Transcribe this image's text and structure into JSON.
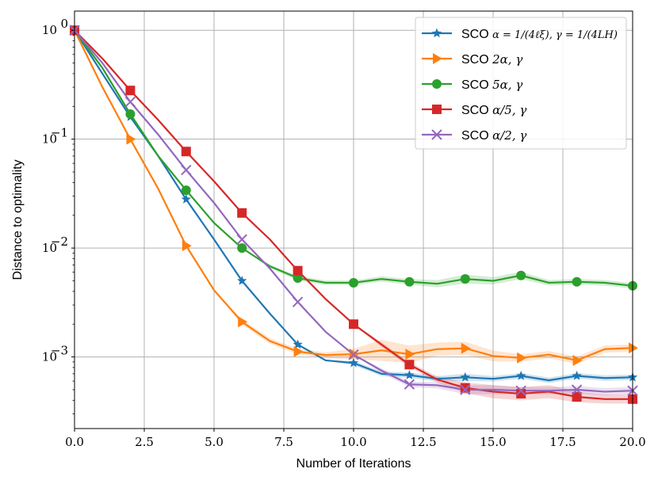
{
  "chart_data": {
    "type": "line",
    "title": "",
    "xlabel": "Number of Iterations",
    "ylabel": "Distance to optimality",
    "yscale": "log",
    "xlim": [
      0,
      20
    ],
    "ylim": [
      0.00022,
      1.5
    ],
    "grid": true,
    "legend_position": "top-right",
    "xticks": [
      0,
      2.5,
      5,
      7.5,
      10,
      12.5,
      15,
      17.5,
      20
    ],
    "xtick_labels": [
      "0.0",
      "2.5",
      "5.0",
      "7.5",
      "10.0",
      "12.5",
      "15.0",
      "17.5",
      "20.0"
    ],
    "yticks": [
      1,
      0.1,
      0.01,
      0.001
    ],
    "ytick_bases": [
      "10",
      "10",
      "10",
      "10"
    ],
    "ytick_exponents": [
      "0",
      "−1",
      "−2",
      "−3"
    ],
    "series": [
      {
        "name": "SCO α = 1/4ℓξ, γ = 1/4LH",
        "legend_prefix": "SCO",
        "legend_math": "α = 1/(4ℓξ), γ = 1/(4LH)",
        "color": "#1f77b4",
        "marker": "star",
        "x": [
          0,
          1,
          2,
          3,
          4,
          5,
          6,
          7,
          8,
          9,
          10,
          11,
          12,
          13,
          14,
          15,
          16,
          17,
          18,
          19,
          20
        ],
        "values": [
          1.0,
          0.4,
          0.16,
          0.07,
          0.028,
          0.012,
          0.005,
          0.0025,
          0.0013,
          0.00093,
          0.00088,
          0.0007,
          0.00068,
          0.00063,
          0.00065,
          0.00063,
          0.00067,
          0.00061,
          0.00067,
          0.00064,
          0.00065
        ],
        "band": [
          0.0,
          0.0,
          0.0,
          0.0,
          0.0,
          0.0,
          0.0,
          0.0,
          0.0,
          0.0,
          0.05,
          0.05,
          0.06,
          0.06,
          0.08,
          0.06,
          0.06,
          0.06,
          0.06,
          0.06,
          0.06
        ]
      },
      {
        "name": "SCO 2α, γ",
        "legend_prefix": "SCO",
        "legend_math": "2α, γ",
        "color": "#ff7f0e",
        "marker": "triangle-right",
        "x": [
          0,
          1,
          2,
          3,
          4,
          5,
          6,
          7,
          8,
          9,
          10,
          11,
          12,
          13,
          14,
          15,
          16,
          17,
          18,
          19,
          20
        ],
        "values": [
          1.0,
          0.3,
          0.1,
          0.035,
          0.0105,
          0.0041,
          0.0021,
          0.0014,
          0.00112,
          0.00104,
          0.00106,
          0.00115,
          0.00106,
          0.00118,
          0.0012,
          0.00102,
          0.00098,
          0.00105,
          0.00093,
          0.00118,
          0.00121
        ],
        "band": [
          0.0,
          0.0,
          0.0,
          0.0,
          0.0,
          0.0,
          0.06,
          0.06,
          0.06,
          0.06,
          0.12,
          0.25,
          0.2,
          0.15,
          0.15,
          0.12,
          0.08,
          0.08,
          0.08,
          0.08,
          0.08
        ]
      },
      {
        "name": "SCO 5α, γ",
        "legend_prefix": "SCO",
        "legend_math": "5α, γ",
        "color": "#2ca02c",
        "marker": "circle",
        "x": [
          0,
          1,
          2,
          3,
          4,
          5,
          6,
          7,
          8,
          9,
          10,
          11,
          12,
          13,
          14,
          15,
          16,
          17,
          18,
          19,
          20
        ],
        "values": [
          1.0,
          0.45,
          0.17,
          0.07,
          0.034,
          0.017,
          0.01,
          0.0068,
          0.0053,
          0.0048,
          0.0048,
          0.0052,
          0.0049,
          0.0047,
          0.0052,
          0.005,
          0.0056,
          0.0048,
          0.0049,
          0.0048,
          0.0045
        ],
        "band": [
          0.0,
          0.0,
          0.0,
          0.0,
          0.0,
          0.0,
          0.0,
          0.04,
          0.05,
          0.05,
          0.05,
          0.06,
          0.06,
          0.08,
          0.1,
          0.08,
          0.08,
          0.06,
          0.06,
          0.06,
          0.06
        ]
      },
      {
        "name": "SCO α/5, γ",
        "legend_prefix": "SCO",
        "legend_math": "α/5, γ",
        "color": "#d62728",
        "marker": "square",
        "x": [
          0,
          1,
          2,
          3,
          4,
          5,
          6,
          7,
          8,
          9,
          10,
          11,
          12,
          13,
          14,
          15,
          16,
          17,
          18,
          19,
          20
        ],
        "values": [
          1.0,
          0.55,
          0.28,
          0.15,
          0.077,
          0.041,
          0.021,
          0.012,
          0.0062,
          0.0034,
          0.002,
          0.0013,
          0.00085,
          0.00062,
          0.00052,
          0.00048,
          0.00046,
          0.00048,
          0.00043,
          0.00041,
          0.00041
        ],
        "band": [
          0.0,
          0.0,
          0.0,
          0.0,
          0.0,
          0.0,
          0.0,
          0.0,
          0.0,
          0.0,
          0.0,
          0.05,
          0.05,
          0.07,
          0.12,
          0.15,
          0.15,
          0.15,
          0.12,
          0.1,
          0.1
        ]
      },
      {
        "name": "SCO α/2, γ",
        "legend_prefix": "SCO",
        "legend_math": "α/2, γ",
        "color": "#9467bd",
        "marker": "x",
        "x": [
          0,
          1,
          2,
          3,
          4,
          5,
          6,
          7,
          8,
          9,
          10,
          11,
          12,
          13,
          14,
          15,
          16,
          17,
          18,
          19,
          20
        ],
        "values": [
          1.0,
          0.5,
          0.22,
          0.11,
          0.052,
          0.026,
          0.012,
          0.0065,
          0.0032,
          0.0017,
          0.00105,
          0.00075,
          0.00056,
          0.00055,
          0.0005,
          0.0005,
          0.00049,
          0.00049,
          0.0005,
          0.00048,
          0.00049
        ],
        "band": [
          0.0,
          0.0,
          0.0,
          0.0,
          0.0,
          0.0,
          0.0,
          0.0,
          0.0,
          0.0,
          0.0,
          0.05,
          0.06,
          0.07,
          0.1,
          0.1,
          0.08,
          0.08,
          0.08,
          0.08,
          0.08
        ]
      }
    ]
  }
}
